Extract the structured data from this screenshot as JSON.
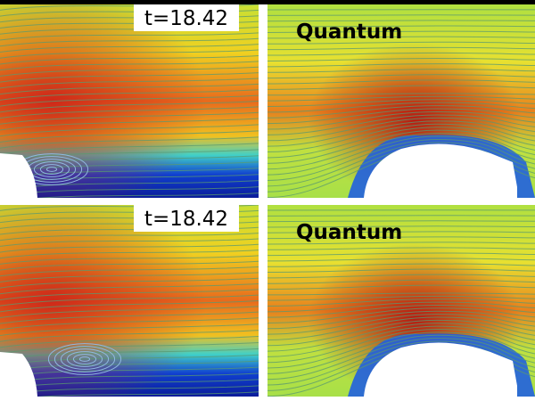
{
  "panels": [
    {
      "label": "t=18.42"
    },
    {
      "label": "Quantum"
    },
    {
      "label": "t=18.42"
    },
    {
      "label": "Quantum"
    }
  ]
}
